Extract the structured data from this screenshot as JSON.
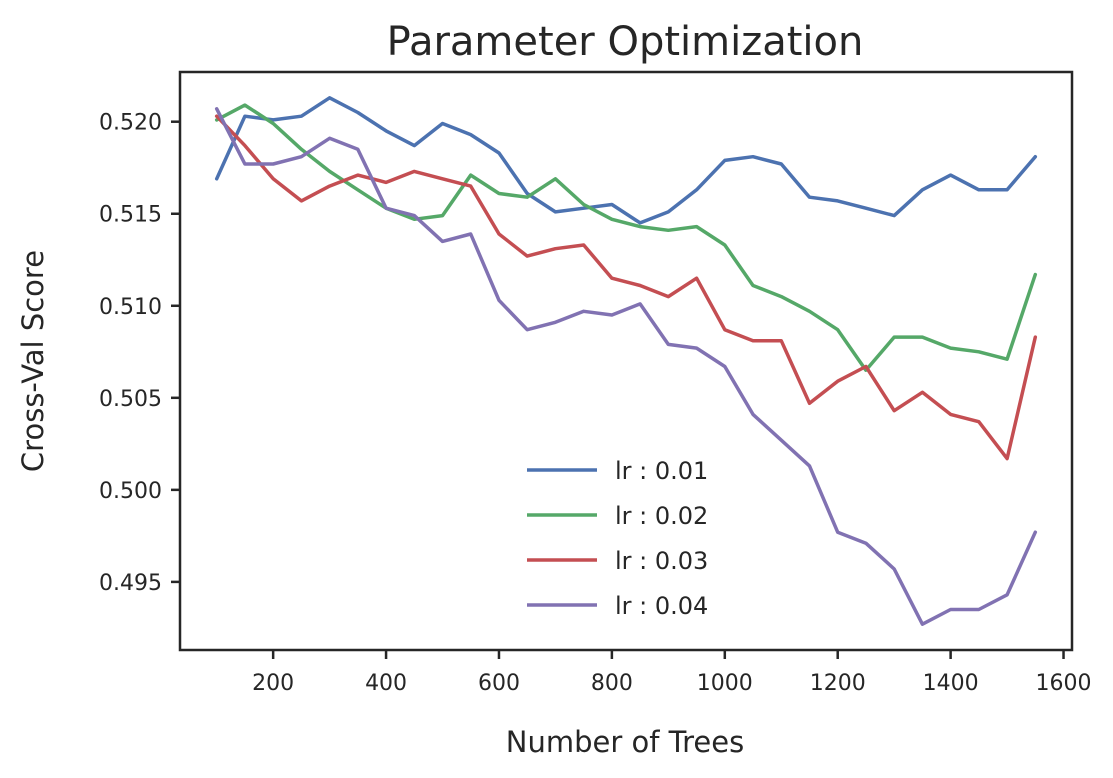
{
  "chart_data": {
    "type": "line",
    "title": "Parameter Optimization",
    "xlabel": "Number of Trees",
    "ylabel": "Cross-Val Score",
    "xlim": [
      35,
      1615
    ],
    "ylim": [
      0.4913,
      0.5227
    ],
    "xticks": [
      200,
      400,
      600,
      800,
      1000,
      1200,
      1400,
      1600
    ],
    "yticks": [
      0.495,
      0.5,
      0.505,
      0.51,
      0.515,
      0.52
    ],
    "xtick_labels": [
      "200",
      "400",
      "600",
      "800",
      "1000",
      "1200",
      "1400",
      "1600"
    ],
    "ytick_labels": [
      "0.495",
      "0.500",
      "0.505",
      "0.510",
      "0.515",
      "0.520"
    ],
    "grid": false,
    "legend_position": "lower-center",
    "x": [
      100,
      150,
      200,
      250,
      300,
      350,
      400,
      450,
      500,
      550,
      600,
      650,
      700,
      750,
      800,
      850,
      900,
      950,
      1000,
      1050,
      1100,
      1150,
      1200,
      1250,
      1300,
      1350,
      1400,
      1450,
      1500,
      1550
    ],
    "series": [
      {
        "name": "lr : 0.01",
        "color": "#4c72b0",
        "values": [
          0.5169,
          0.5203,
          0.5201,
          0.5203,
          0.5213,
          0.5205,
          0.5195,
          0.5187,
          0.5199,
          0.5193,
          0.5183,
          0.5161,
          0.5151,
          0.5153,
          0.5155,
          0.5145,
          0.5151,
          0.5163,
          0.5179,
          0.5181,
          0.5177,
          0.5159,
          0.5157,
          0.5153,
          0.5149,
          0.5163,
          0.5171,
          0.5163,
          0.5163,
          0.5181
        ]
      },
      {
        "name": "lr : 0.02",
        "color": "#55a868",
        "values": [
          0.5201,
          0.5209,
          0.5199,
          0.5185,
          0.5173,
          0.5163,
          0.5153,
          0.5147,
          0.5149,
          0.5171,
          0.5161,
          0.5159,
          0.5169,
          0.5155,
          0.5147,
          0.5143,
          0.5141,
          0.5143,
          0.5133,
          0.5111,
          0.5105,
          0.5097,
          0.5087,
          0.5065,
          0.5083,
          0.5083,
          0.5077,
          0.5075,
          0.5071,
          0.5117
        ]
      },
      {
        "name": "lr : 0.03",
        "color": "#c44e52",
        "values": [
          0.5203,
          0.5187,
          0.5169,
          0.5157,
          0.5165,
          0.5171,
          0.5167,
          0.5173,
          0.5169,
          0.5165,
          0.5139,
          0.5127,
          0.5131,
          0.5133,
          0.5115,
          0.5111,
          0.5105,
          0.5115,
          0.5087,
          0.5081,
          0.5081,
          0.5047,
          0.5059,
          0.5067,
          0.5043,
          0.5053,
          0.5041,
          0.5037,
          0.5017,
          0.5083
        ]
      },
      {
        "name": "lr : 0.04",
        "color": "#8172b2",
        "values": [
          0.5207,
          0.5177,
          0.5177,
          0.5181,
          0.5191,
          0.5185,
          0.5153,
          0.5149,
          0.5135,
          0.5139,
          0.5103,
          0.5087,
          0.5091,
          0.5097,
          0.5095,
          0.5101,
          0.5079,
          0.5077,
          0.5067,
          0.5041,
          0.5027,
          0.5013,
          0.4977,
          0.4971,
          0.4957,
          0.4927,
          0.4935,
          0.4935,
          0.4943,
          0.4977
        ]
      }
    ]
  }
}
